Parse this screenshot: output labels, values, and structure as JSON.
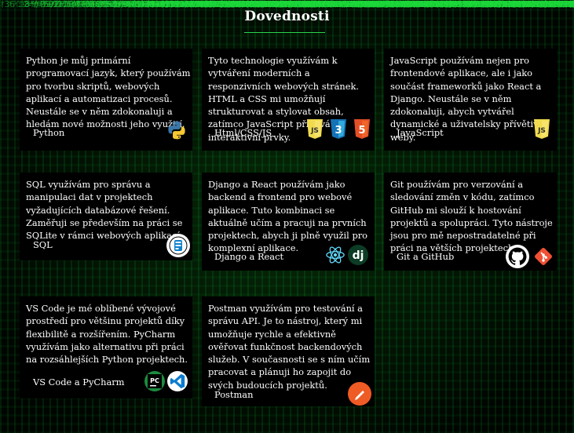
{
  "page": {
    "title": "Dovednosti"
  },
  "cards": [
    {
      "text": "Python je můj primární programovací jazyk, který používám pro tvorbu skriptů, webových aplikací a automatizaci procesů. Neustále se v něm zdokonaluji a hledám nové možnosti jeho využití.",
      "label": "Python",
      "icons": [
        "python-icon"
      ]
    },
    {
      "text": "Tyto technologie využívám k vytváření moderních a responzivních webových stránek. HTML a CSS mi umožňují strukturovat a stylovat obsah, zatímco JavaScript přidává interaktivní prvky.",
      "label": "Html/CSS/JS",
      "icons": [
        "javascript-icon",
        "css3-icon",
        "html5-icon"
      ]
    },
    {
      "text": "JavaScript používám nejen pro frontendové aplikace, ale i jako součást frameworků jako React a Django. Neustále se v něm zdokonaluji, abych vytvářel dynamické a uživatelsky přívětivé weby.",
      "label": "JavaScript",
      "icons": [
        "javascript-icon"
      ]
    },
    {
      "text": "SQL využívám pro správu a manipulaci dat v projektech vyžadujících databázové řešení. Zaměřuji se především na práci se SQLite v rámci webových aplikací.",
      "label": "SQL",
      "icons": [
        "sqlite-icon"
      ]
    },
    {
      "text": "Django a React používám jako backend a frontend pro webové aplikace. Tuto kombinaci se aktuálně učím a pracuji na prvních projektech, abych ji plně využil pro komplexní aplikace.",
      "label": "Django a React",
      "icons": [
        "react-icon",
        "django-icon"
      ]
    },
    {
      "text": "Git používám pro verzování a sledování změn v kódu, zatímco GitHub mi slouží k hostování projektů a spolupráci. Tyto nástroje jsou pro mě nepostradatelné při práci na větších projektech.",
      "label": "Git a GitHub",
      "icons": [
        "github-icon",
        "git-icon"
      ]
    },
    {
      "text": "VS Code je mé oblíbené vývojové prostředí pro většinu projektů díky flexibilitě a rozšířením. PyCharm využívám jako alternativu při práci na rozsáhlejších Python projektech.",
      "label": "VS Code a PyCharm",
      "icons": [
        "pycharm-icon",
        "vscode-icon"
      ]
    },
    {
      "text": "Postman využívám pro testování a správu API. Je to nástroj, který mi umožňuje rychle a efektivně ověřovat funkčnost backendových služeb. V současnosti se s ním učím pracovat a plánuji ho zapojit do svých budoucích projektů.",
      "label": "Postman",
      "icons": [
        "postman-icon"
      ]
    }
  ],
  "colors": {
    "accent": "#2bd64b",
    "card_bg": "#000000",
    "text": "#ffffff"
  }
}
